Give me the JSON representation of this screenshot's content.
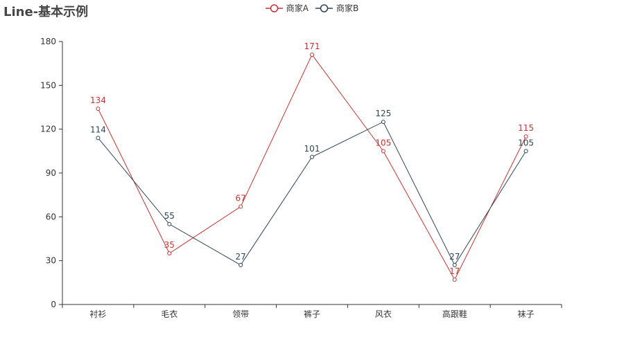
{
  "title": "Line-基本示例",
  "colors": {
    "series_a": "#c23531",
    "series_b": "#2f4554",
    "axis": "#333333",
    "axis_label": "#333333"
  },
  "chart_data": {
    "type": "line",
    "title": "Line-基本示例",
    "categories": [
      "衬衫",
      "毛衣",
      "领带",
      "裤子",
      "风衣",
      "高跟鞋",
      "袜子"
    ],
    "series": [
      {
        "name": "商家A",
        "values": [
          134,
          35,
          67,
          171,
          105,
          17,
          115
        ]
      },
      {
        "name": "商家B",
        "values": [
          114,
          55,
          27,
          101,
          125,
          27,
          105
        ]
      }
    ],
    "yticks": [
      0,
      30,
      60,
      90,
      120,
      150,
      180
    ],
    "ylim": [
      0,
      180
    ],
    "grid": false,
    "legend": "top-center",
    "xlabel": "",
    "ylabel": ""
  }
}
